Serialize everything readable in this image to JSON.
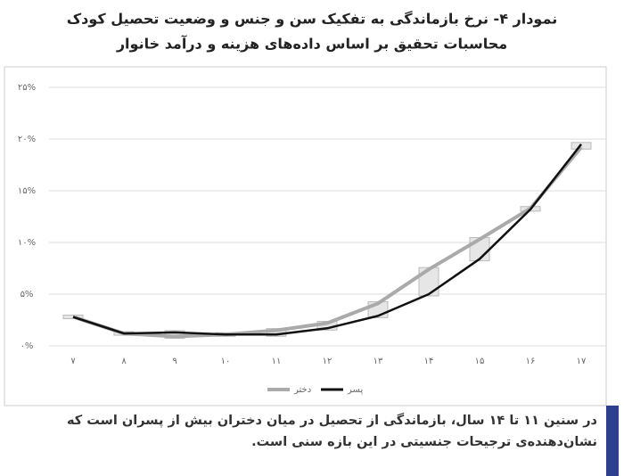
{
  "chart_data": {
    "type": "line",
    "title": "نمودار ۴- نرخ بازماندگی به تفکیک سن و جنس و وضعیت تحصیل کودک",
    "subtitle": "محاسبات تحقیق بر اساس داده‌های هزینه و درآمد خانوار",
    "categories": [
      "۷",
      "۸",
      "۹",
      "۱۰",
      "۱۱",
      "۱۲",
      "۱۳",
      "۱۴",
      "۱۵",
      "۱۶",
      "۱۷"
    ],
    "series": [
      {
        "name": "دختر",
        "color": "#aaaaaa",
        "values": [
          2.8,
          1.2,
          0.9,
          1.1,
          1.5,
          2.2,
          4.1,
          7.4,
          10.3,
          13.3,
          19.2
        ]
      },
      {
        "name": "پسر",
        "color": "#111111",
        "values": [
          2.8,
          1.2,
          1.3,
          1.1,
          1.1,
          1.7,
          2.9,
          5.0,
          8.4,
          13.2,
          19.5
        ]
      }
    ],
    "ylim": [
      0,
      25
    ],
    "yticks": [
      {
        "value": 0,
        "label": "۰%"
      },
      {
        "value": 5,
        "label": "۵%"
      },
      {
        "value": 10,
        "label": "۱۰%"
      },
      {
        "value": 15,
        "label": "۱۵%"
      },
      {
        "value": 20,
        "label": "۲۰%"
      },
      {
        "value": 25,
        "label": "۲۵%"
      }
    ],
    "grid": true,
    "legend": "bottom",
    "caption": "در سنین ۱۱ تا ۱۴ سال، بازماندگی از تحصیل در میان دختران بیش از پسران است که نشان‌دهنده‌ی ترجیحات جنسیتی در این بازه سنی است."
  }
}
